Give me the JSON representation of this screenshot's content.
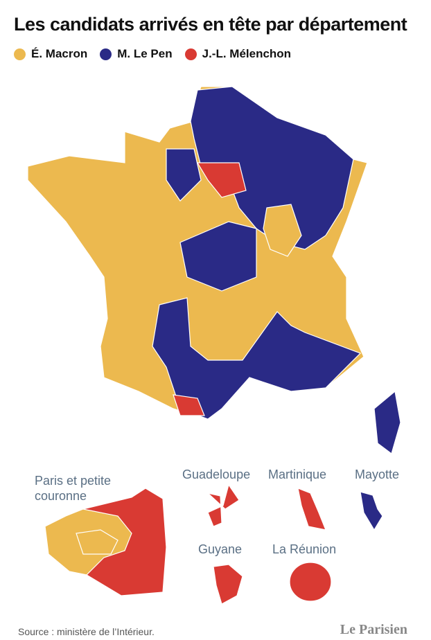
{
  "header": {
    "title": "Les candidats arrivés en tête par département"
  },
  "legend": [
    {
      "name": "É. Macron",
      "color": "#ecb94f"
    },
    {
      "name": "M. Le Pen",
      "color": "#2a2a86"
    },
    {
      "name": "J.-L. Mélenchon",
      "color": "#d93a33"
    }
  ],
  "insets": [
    {
      "label": "Paris et petite couronne"
    },
    {
      "label": "Guadeloupe"
    },
    {
      "label": "Martinique"
    },
    {
      "label": "Mayotte"
    },
    {
      "label": "Guyane"
    },
    {
      "label": "La Réunion"
    }
  ],
  "footer": {
    "source": "Source : ministère de l’Intérieur.",
    "logo": "Le Parisien"
  }
}
